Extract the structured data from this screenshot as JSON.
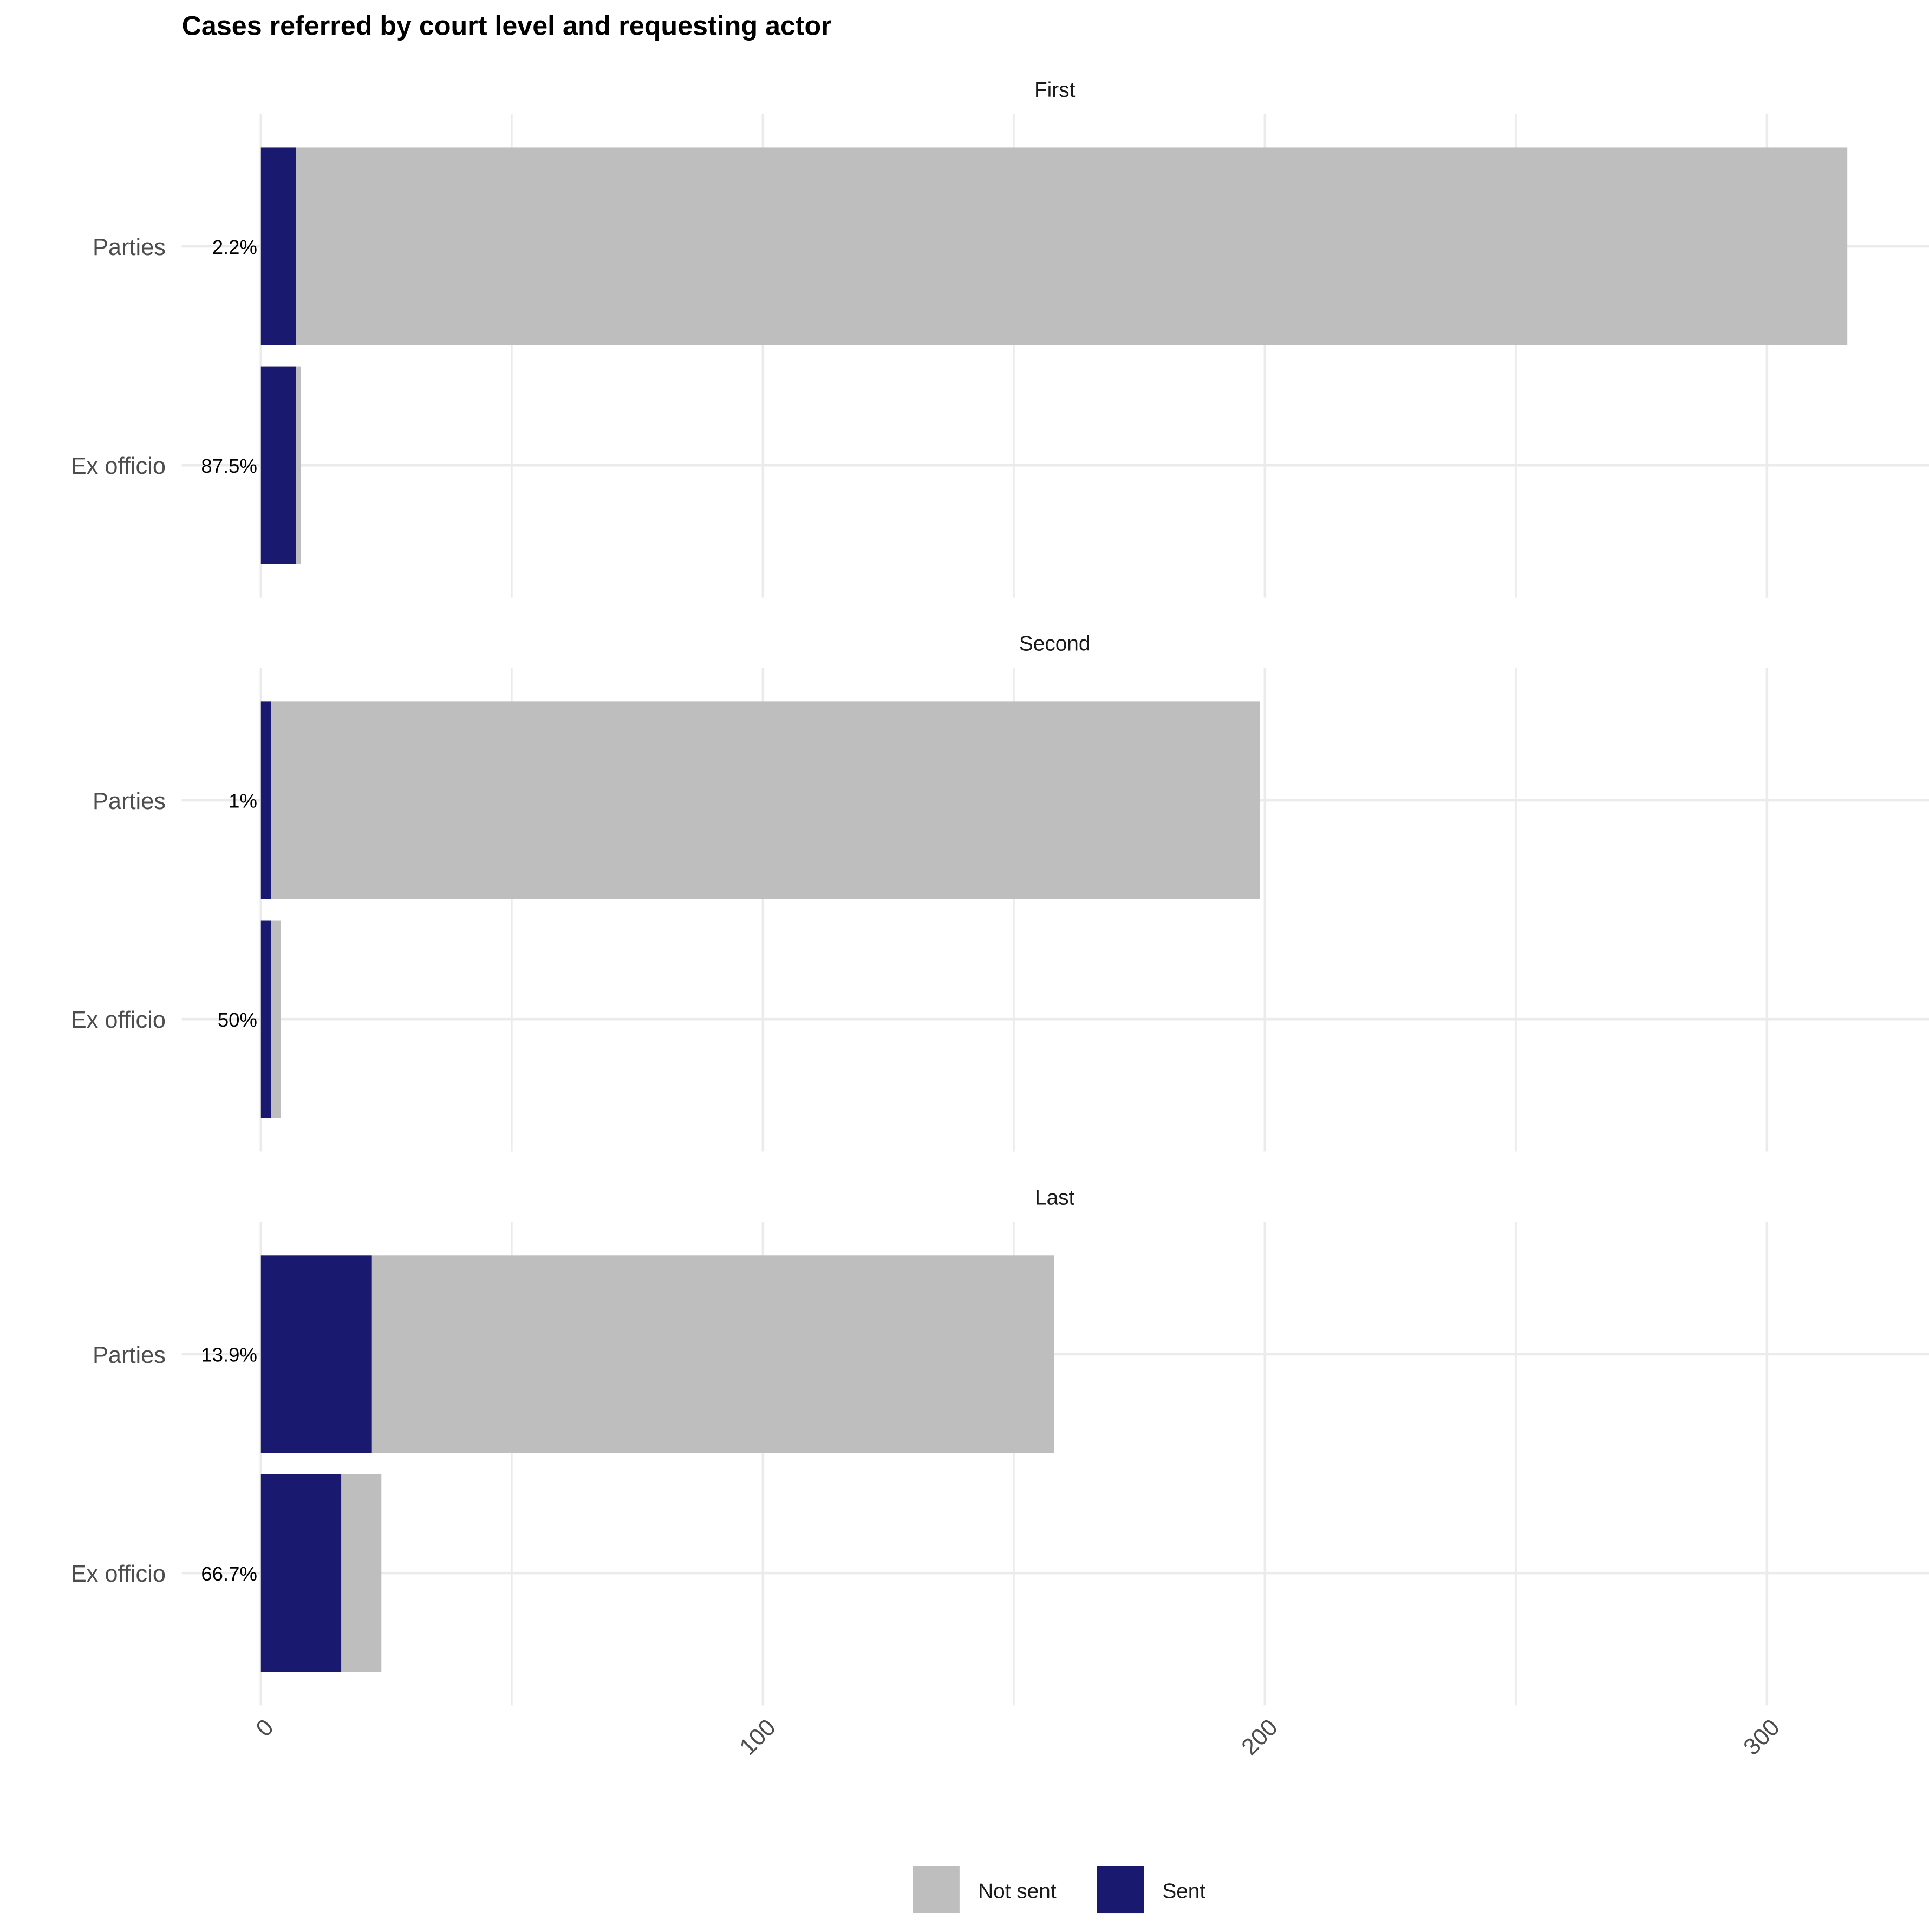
{
  "chart_data": {
    "type": "bar",
    "orientation": "horizontal",
    "stacked": true,
    "title": "Cases referred by court level and requesting actor",
    "xlabel": "",
    "ylabel": "",
    "xlim": [
      0,
      332
    ],
    "x_ticks": [
      "0",
      "100",
      "200",
      "300"
    ],
    "x_tick_values": [
      0,
      100,
      200,
      300
    ],
    "grid": true,
    "legend_position": "bottom",
    "legend": [
      {
        "name": "Not sent",
        "color": "#bebebe"
      },
      {
        "name": "Sent",
        "color": "#191970"
      }
    ],
    "categories": [
      "Parties",
      "Ex officio"
    ],
    "panels": [
      {
        "label": "First",
        "rows": [
          {
            "category": "Parties",
            "sent": 7,
            "not_sent": 309,
            "pct_label": "2.2%"
          },
          {
            "category": "Ex officio",
            "sent": 7,
            "not_sent": 1,
            "pct_label": "87.5%"
          }
        ]
      },
      {
        "label": "Second",
        "rows": [
          {
            "category": "Parties",
            "sent": 2,
            "not_sent": 197,
            "pct_label": "1%"
          },
          {
            "category": "Ex officio",
            "sent": 2,
            "not_sent": 2,
            "pct_label": "50%"
          }
        ]
      },
      {
        "label": "Last",
        "rows": [
          {
            "category": "Parties",
            "sent": 22,
            "not_sent": 136,
            "pct_label": "13.9%"
          },
          {
            "category": "Ex officio",
            "sent": 16,
            "not_sent": 8,
            "pct_label": "66.7%"
          }
        ]
      }
    ]
  }
}
